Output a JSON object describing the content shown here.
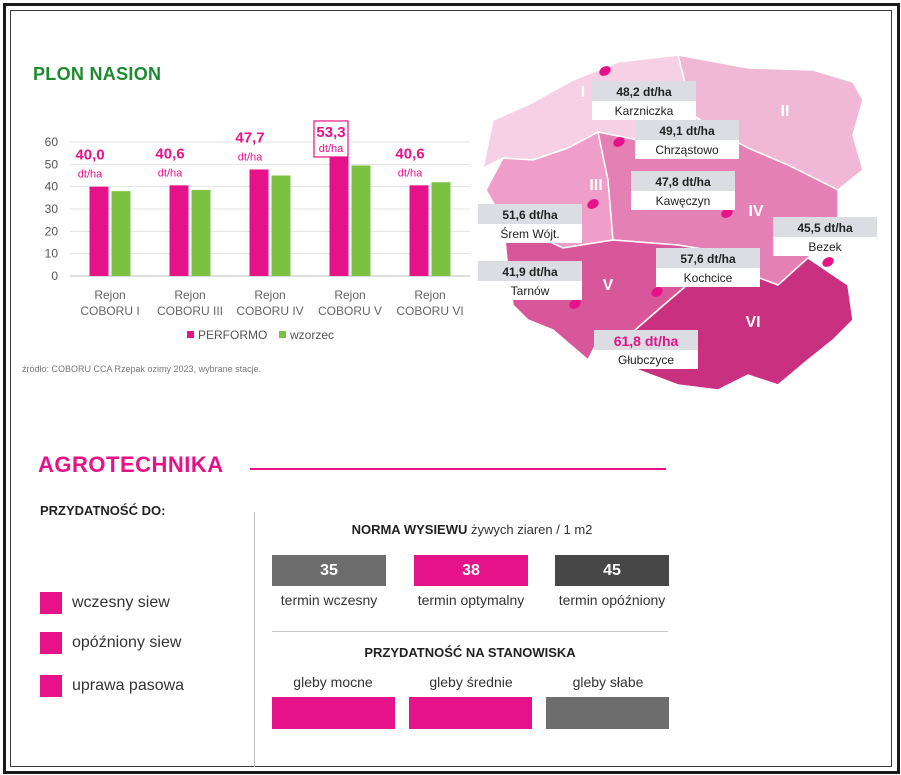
{
  "plon": {
    "title": "PLON NASION",
    "source": "źródło: COBORU CCA Rzepak ozimy 2023, wybrane stacje."
  },
  "chart_data": {
    "type": "bar",
    "categories": [
      [
        "Rejon",
        "COBORU I"
      ],
      [
        "Rejon",
        "COBORU III"
      ],
      [
        "Rejon",
        "COBORU IV"
      ],
      [
        "Rejon",
        "COBORU V"
      ],
      [
        "Rejon",
        "COBORU VI"
      ]
    ],
    "series": [
      {
        "name": "PERFORMO",
        "values": [
          40.0,
          40.6,
          47.7,
          53.3,
          40.6
        ],
        "color": "#e5128a"
      },
      {
        "name": "wzorzec",
        "values": [
          38.0,
          38.5,
          45.0,
          49.5,
          42.0
        ],
        "color": "#7cc242"
      }
    ],
    "value_labels": [
      "40,0",
      "40,6",
      "47,7",
      "53,3",
      "40,6"
    ],
    "unit_label": "dt/ha",
    "highlight_index": 3,
    "yticks": [
      0,
      10,
      20,
      30,
      40,
      50,
      60
    ],
    "ylim": [
      0,
      60
    ],
    "grid": true,
    "legend": "bottom",
    "xlabel": "",
    "ylabel": ""
  },
  "map": {
    "regions": [
      "I",
      "II",
      "III",
      "IV",
      "V",
      "VI"
    ],
    "stations": [
      {
        "value": "48,2 dt/ha",
        "name": "Karzniczka"
      },
      {
        "value": "49,1 dt/ha",
        "name": "Chrząstowo"
      },
      {
        "value": "47,8 dt/ha",
        "name": "Kawęczyn"
      },
      {
        "value": "51,6 dt/ha",
        "name": "Śrem Wójt."
      },
      {
        "value": "45,5 dt/ha",
        "name": "Bezek"
      },
      {
        "value": "57,6 dt/ha",
        "name": "Kochcice"
      },
      {
        "value": "41,9 dt/ha",
        "name": "Tarnów"
      },
      {
        "value": "61,8 dt/ha",
        "name": "Głubczyce"
      }
    ],
    "highlight_station": 7
  },
  "agro": {
    "title": "AGROTECHNIKA",
    "suitability_title": "PRZYDATNOŚĆ DO:",
    "suitability": [
      "wczesny siew",
      "opóźniony siew",
      "uprawa pasowa"
    ],
    "norma_title_bold": "NORMA WYSIEWU",
    "norma_title_rest": " żywych ziaren / 1 m2",
    "norma": [
      {
        "value": "35",
        "label": "termin wczesny",
        "color": "#6d6d6d"
      },
      {
        "value": "38",
        "label": "termin optymalny",
        "color": "#e5128a"
      },
      {
        "value": "45",
        "label": "termin opóźniony",
        "color": "#474747"
      }
    ],
    "stanowiska_title": "PRZYDATNOŚĆ NA STANOWISKA",
    "stanowiska": [
      {
        "label": "gleby mocne",
        "color": "#e5128a"
      },
      {
        "label": "gleby średnie",
        "color": "#e5128a"
      },
      {
        "label": "gleby słabe",
        "color": "#6d6d6d"
      }
    ]
  },
  "colors": {
    "accent": "#e5128a",
    "green": "#7cc242",
    "title_green": "#1e8a2e"
  }
}
